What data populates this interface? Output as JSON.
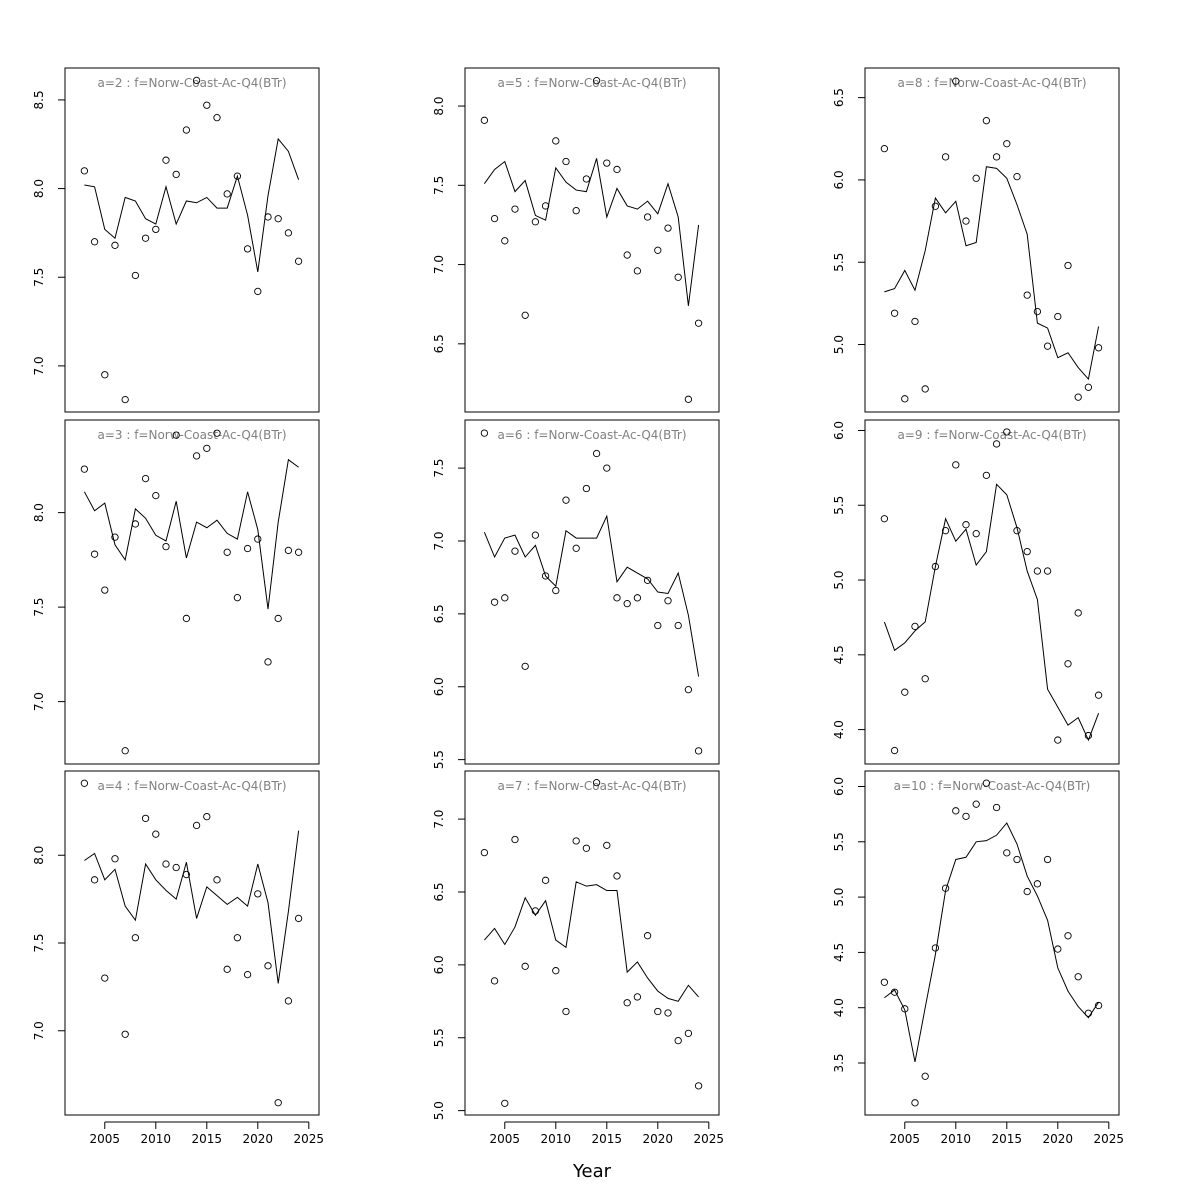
{
  "chart_data": [
    {
      "type": "scatter-line",
      "title": "a=2  :  f=Norw-Coast-Ac-Q4(BTr)",
      "x": [
        2003,
        2004,
        2005,
        2006,
        2007,
        2008,
        2009,
        2010,
        2011,
        2012,
        2013,
        2014,
        2015,
        2016,
        2017,
        2018,
        2019,
        2020,
        2021,
        2022,
        2023,
        2024
      ],
      "series": [
        {
          "marker": "circle",
          "color": "#000000",
          "values": [
            8.1,
            7.7,
            6.95,
            7.68,
            6.81,
            7.51,
            7.72,
            7.77,
            8.16,
            8.08,
            8.33,
            8.61,
            8.47,
            8.4,
            7.97,
            8.07,
            7.66,
            7.42,
            7.84,
            7.83,
            7.75,
            7.59
          ]
        },
        {
          "marker": "line",
          "color": "#000000",
          "values": [
            8.02,
            8.01,
            7.77,
            7.72,
            7.95,
            7.93,
            7.83,
            7.8,
            8.01,
            7.8,
            7.93,
            7.92,
            7.95,
            7.89,
            7.89,
            8.07,
            7.85,
            7.53,
            7.96,
            8.28,
            8.21,
            8.05
          ]
        }
      ],
      "xlim": [
        2001.1,
        2026.0
      ],
      "ylim": [
        6.74,
        8.68
      ],
      "yticks": [
        {
          "value": 7,
          "label": "7.0"
        },
        7.5,
        {
          "value": 8,
          "label": "8.0"
        },
        8.5
      ]
    },
    {
      "type": "scatter-line",
      "title": "a=5  :  f=Norw-Coast-Ac-Q4(BTr)",
      "x": [
        2003,
        2004,
        2005,
        2006,
        2007,
        2008,
        2009,
        2010,
        2011,
        2012,
        2013,
        2014,
        2015,
        2016,
        2017,
        2018,
        2019,
        2020,
        2021,
        2022,
        2023,
        2024
      ],
      "series": [
        {
          "marker": "circle",
          "color": "#000000",
          "values": [
            7.91,
            7.29,
            7.15,
            7.35,
            6.68,
            7.27,
            7.37,
            7.78,
            7.65,
            7.34,
            7.54,
            8.16,
            7.64,
            7.6,
            7.06,
            6.96,
            7.3,
            7.09,
            7.23,
            6.92,
            6.15,
            6.63
          ]
        },
        {
          "marker": "line",
          "color": "#000000",
          "values": [
            7.51,
            7.6,
            7.65,
            7.46,
            7.53,
            7.31,
            7.28,
            7.61,
            7.52,
            7.47,
            7.46,
            7.67,
            7.3,
            7.48,
            7.37,
            7.35,
            7.4,
            7.32,
            7.51,
            7.3,
            6.74,
            7.25
          ]
        }
      ],
      "xlim": [
        2001.1,
        2026.0
      ],
      "ylim": [
        6.07,
        8.24
      ],
      "yticks": [
        6.5,
        {
          "value": 7,
          "label": "7.0"
        },
        7.5,
        {
          "value": 8,
          "label": "8.0"
        }
      ]
    },
    {
      "type": "scatter-line",
      "title": "a=8  :  f=Norw-Coast-Ac-Q4(BTr)",
      "x": [
        2003,
        2004,
        2005,
        2006,
        2007,
        2008,
        2009,
        2010,
        2011,
        2012,
        2013,
        2014,
        2015,
        2016,
        2017,
        2018,
        2019,
        2020,
        2021,
        2022,
        2023,
        2024
      ],
      "series": [
        {
          "marker": "circle",
          "color": "#000000",
          "values": [
            6.19,
            5.19,
            4.67,
            5.14,
            4.73,
            5.84,
            6.14,
            6.6,
            5.75,
            6.01,
            6.36,
            6.14,
            6.22,
            6.02,
            5.3,
            5.2,
            4.99,
            5.17,
            5.48,
            4.68,
            4.74,
            4.98
          ]
        },
        {
          "marker": "line",
          "color": "#000000",
          "values": [
            5.32,
            5.34,
            5.45,
            5.33,
            5.57,
            5.89,
            5.8,
            5.87,
            5.6,
            5.62,
            6.08,
            6.07,
            6.01,
            5.85,
            5.67,
            5.13,
            5.1,
            4.92,
            4.95,
            4.86,
            4.79,
            5.11
          ]
        }
      ],
      "xlim": [
        2001.1,
        2026.0
      ],
      "ylim": [
        4.59,
        6.68
      ],
      "yticks": [
        {
          "value": 5,
          "label": "5.0"
        },
        5.5,
        {
          "value": 6,
          "label": "6.0"
        },
        6.5
      ]
    },
    {
      "type": "scatter-line",
      "title": "a=3  :  f=Norw-Coast-Ac-Q4(BTr)",
      "x": [
        2003,
        2004,
        2005,
        2006,
        2007,
        2008,
        2009,
        2010,
        2011,
        2012,
        2013,
        2014,
        2015,
        2016,
        2017,
        2018,
        2019,
        2020,
        2021,
        2022,
        2023,
        2024
      ],
      "series": [
        {
          "marker": "circle",
          "color": "#000000",
          "values": [
            8.23,
            7.78,
            7.59,
            7.87,
            6.74,
            7.94,
            8.18,
            8.09,
            7.82,
            8.41,
            7.44,
            8.3,
            8.34,
            8.42,
            7.79,
            7.55,
            7.81,
            7.86,
            7.21,
            7.44,
            7.8,
            7.79
          ]
        },
        {
          "marker": "line",
          "color": "#000000",
          "values": [
            8.11,
            8.01,
            8.05,
            7.83,
            7.75,
            8.02,
            7.97,
            7.88,
            7.85,
            8.06,
            7.76,
            7.95,
            7.92,
            7.96,
            7.89,
            7.86,
            8.11,
            7.91,
            7.49,
            7.95,
            8.28,
            8.24
          ]
        }
      ],
      "xlim": [
        2001.1,
        2026.0
      ],
      "ylim": [
        6.67,
        8.49
      ],
      "yticks": [
        {
          "value": 7,
          "label": "7.0"
        },
        7.5,
        {
          "value": 8,
          "label": "8.0"
        }
      ]
    },
    {
      "type": "scatter-line",
      "title": "a=6  :  f=Norw-Coast-Ac-Q4(BTr)",
      "x": [
        2003,
        2004,
        2005,
        2006,
        2007,
        2008,
        2009,
        2010,
        2011,
        2012,
        2013,
        2014,
        2015,
        2016,
        2017,
        2018,
        2019,
        2020,
        2021,
        2022,
        2023,
        2024
      ],
      "series": [
        {
          "marker": "circle",
          "color": "#000000",
          "values": [
            7.74,
            6.58,
            6.61,
            6.93,
            6.14,
            7.04,
            6.76,
            6.66,
            7.28,
            6.95,
            7.36,
            7.6,
            7.5,
            6.61,
            6.57,
            6.61,
            6.73,
            6.42,
            6.59,
            6.42,
            5.98,
            5.56
          ]
        },
        {
          "marker": "line",
          "color": "#000000",
          "values": [
            7.06,
            6.89,
            7.02,
            7.04,
            6.89,
            6.97,
            6.76,
            6.69,
            7.07,
            7.02,
            7.02,
            7.02,
            7.17,
            6.72,
            6.82,
            6.78,
            6.74,
            6.65,
            6.64,
            6.78,
            6.49,
            6.07
          ]
        }
      ],
      "xlim": [
        2001.1,
        2026.0
      ],
      "ylim": [
        5.47,
        7.83
      ],
      "yticks": [
        5.5,
        {
          "value": 6,
          "label": "6.0"
        },
        6.5,
        {
          "value": 7,
          "label": "7.0"
        },
        7.5
      ]
    },
    {
      "type": "scatter-line",
      "title": "a=9  :  f=Norw-Coast-Ac-Q4(BTr)",
      "x": [
        2003,
        2004,
        2005,
        2006,
        2007,
        2008,
        2009,
        2010,
        2011,
        2012,
        2013,
        2014,
        2015,
        2016,
        2017,
        2018,
        2019,
        2020,
        2021,
        2022,
        2023,
        2024
      ],
      "series": [
        {
          "marker": "circle",
          "color": "#000000",
          "values": [
            5.41,
            3.86,
            4.25,
            4.69,
            4.34,
            5.09,
            5.33,
            5.77,
            5.37,
            5.31,
            5.7,
            5.91,
            5.99,
            5.33,
            5.19,
            5.06,
            5.06,
            3.93,
            4.44,
            4.78,
            3.96,
            4.23
          ]
        },
        {
          "marker": "line",
          "color": "#000000",
          "values": [
            4.72,
            4.53,
            4.58,
            4.66,
            4.72,
            5.09,
            5.41,
            5.26,
            5.34,
            5.1,
            5.19,
            5.64,
            5.57,
            5.35,
            5.06,
            4.87,
            4.27,
            4.15,
            4.03,
            4.08,
            3.93,
            4.11
          ]
        }
      ],
      "xlim": [
        2001.1,
        2026.0
      ],
      "ylim": [
        3.77,
        6.07
      ],
      "yticks": [
        {
          "value": 4,
          "label": "4.0"
        },
        4.5,
        {
          "value": 5,
          "label": "5.0"
        },
        5.5,
        {
          "value": 6,
          "label": "6.0"
        }
      ]
    },
    {
      "type": "scatter-line",
      "title": "a=4  :  f=Norw-Coast-Ac-Q4(BTr)",
      "x": [
        2003,
        2004,
        2005,
        2006,
        2007,
        2008,
        2009,
        2010,
        2011,
        2012,
        2013,
        2014,
        2015,
        2016,
        2017,
        2018,
        2019,
        2020,
        2021,
        2022,
        2023,
        2024
      ],
      "series": [
        {
          "marker": "circle",
          "color": "#000000",
          "values": [
            8.41,
            7.86,
            7.3,
            7.98,
            6.98,
            7.53,
            8.21,
            8.12,
            7.95,
            7.93,
            7.89,
            8.17,
            8.22,
            7.86,
            7.35,
            7.53,
            7.32,
            7.78,
            7.37,
            6.59,
            7.17,
            7.64
          ]
        },
        {
          "marker": "line",
          "color": "#000000",
          "values": [
            7.97,
            8.01,
            7.86,
            7.92,
            7.71,
            7.63,
            7.95,
            7.86,
            7.8,
            7.75,
            7.96,
            7.64,
            7.82,
            7.77,
            7.72,
            7.76,
            7.71,
            7.95,
            7.73,
            7.27,
            7.68,
            8.14
          ]
        }
      ],
      "xlim": [
        2001.1,
        2026.0
      ],
      "ylim": [
        6.52,
        8.48
      ],
      "yticks": [
        {
          "value": 7,
          "label": "7.0"
        },
        7.5,
        {
          "value": 8,
          "label": "8.0"
        }
      ],
      "xticks": [
        2005,
        2010,
        2015,
        2020,
        2025
      ]
    },
    {
      "type": "scatter-line",
      "title": "a=7  :  f=Norw-Coast-Ac-Q4(BTr)",
      "x_label": "Year",
      "x": [
        2003,
        2004,
        2005,
        2006,
        2007,
        2008,
        2009,
        2010,
        2011,
        2012,
        2013,
        2014,
        2015,
        2016,
        2017,
        2018,
        2019,
        2020,
        2021,
        2022,
        2023,
        2024
      ],
      "series": [
        {
          "marker": "circle",
          "color": "#000000",
          "values": [
            6.77,
            5.89,
            5.05,
            6.86,
            5.99,
            6.37,
            6.58,
            5.96,
            5.68,
            6.85,
            6.8,
            7.25,
            6.82,
            6.61,
            5.74,
            5.78,
            6.2,
            5.68,
            5.67,
            5.48,
            5.53,
            5.17
          ]
        },
        {
          "marker": "line",
          "color": "#000000",
          "values": [
            6.17,
            6.25,
            6.14,
            6.26,
            6.46,
            6.34,
            6.44,
            6.17,
            6.12,
            6.57,
            6.54,
            6.55,
            6.51,
            6.51,
            5.95,
            6.02,
            5.91,
            5.82,
            5.77,
            5.75,
            5.86,
            5.78
          ]
        }
      ],
      "xlim": [
        2001.1,
        2026.0
      ],
      "ylim": [
        4.97,
        7.33
      ],
      "yticks": [
        {
          "value": 5,
          "label": "5.0"
        },
        5.5,
        {
          "value": 6,
          "label": "6.0"
        },
        6.5,
        {
          "value": 7,
          "label": "7.0"
        }
      ],
      "xticks": [
        2005,
        2010,
        2015,
        2020,
        2025
      ]
    },
    {
      "type": "scatter-line",
      "title": "a=10  :  f=Norw-Coast-Ac-Q4(BTr)",
      "x": [
        2003,
        2004,
        2005,
        2006,
        2007,
        2008,
        2009,
        2010,
        2011,
        2012,
        2013,
        2014,
        2015,
        2016,
        2017,
        2018,
        2019,
        2020,
        2021,
        2022,
        2023,
        2024
      ],
      "series": [
        {
          "marker": "circle",
          "color": "#000000",
          "values": [
            4.23,
            4.14,
            3.99,
            3.14,
            3.38,
            4.54,
            5.08,
            5.78,
            5.73,
            5.84,
            6.03,
            5.81,
            5.4,
            5.34,
            5.05,
            5.12,
            5.34,
            4.53,
            4.65,
            4.28,
            3.95,
            4.02
          ]
        },
        {
          "marker": "line",
          "color": "#000000",
          "values": [
            4.09,
            4.16,
            3.98,
            3.51,
            4.0,
            4.48,
            5.06,
            5.34,
            5.36,
            5.5,
            5.51,
            5.56,
            5.67,
            5.48,
            5.19,
            5.01,
            4.79,
            4.36,
            4.15,
            4.01,
            3.91,
            4.05
          ]
        }
      ],
      "xlim": [
        2001.1,
        2026.0
      ],
      "ylim": [
        3.03,
        6.14
      ],
      "yticks": [
        3.5,
        {
          "value": 4,
          "label": "4.0"
        },
        4.5,
        {
          "value": 5,
          "label": "5.0"
        },
        5.5,
        {
          "value": 6,
          "label": "6.0"
        }
      ],
      "xticks": [
        2005,
        2010,
        2015,
        2020,
        2025
      ]
    }
  ]
}
